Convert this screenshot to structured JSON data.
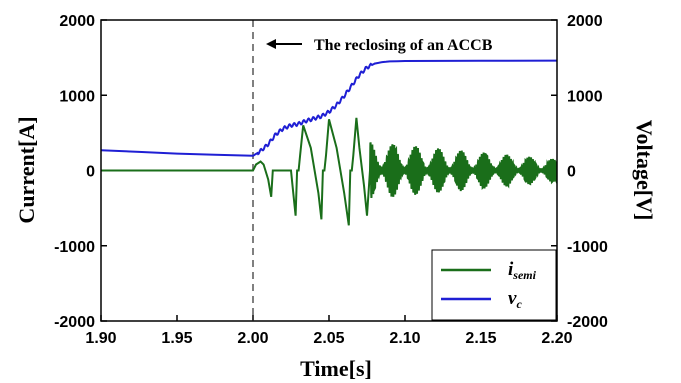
{
  "chart_data": {
    "type": "line",
    "xlabel": "Time[s]",
    "ylabel_left": "Current[A]",
    "ylabel_right": "Voltage[V]",
    "xlim": [
      1.9,
      2.2
    ],
    "ylim_left": [
      -2000,
      2000
    ],
    "ylim_right": [
      -2000,
      2000
    ],
    "x_ticks": [
      "1.90",
      "1.95",
      "2.00",
      "2.05",
      "2.10",
      "2.15",
      "2.20"
    ],
    "y_ticks_left": [
      "2000",
      "1000",
      "0",
      "-1000",
      "-2000"
    ],
    "y_ticks_right": [
      "2000",
      "1000",
      "0",
      "-1000",
      "-2000"
    ],
    "grid": false,
    "legend_position": "bottom-right",
    "annotation": {
      "text": "The reclosing of an ACCB",
      "x": 2.0
    },
    "series": [
      {
        "name_main": "i",
        "name_sub": "semi",
        "color": "#1a6e1a",
        "axis": "left",
        "points": [
          [
            1.9,
            0
          ],
          [
            2.0,
            0
          ],
          [
            2.002,
            80
          ],
          [
            2.005,
            120
          ],
          [
            2.007,
            80
          ],
          [
            2.01,
            -120
          ],
          [
            2.012,
            -350
          ],
          [
            2.013,
            0
          ],
          [
            2.025,
            0
          ],
          [
            2.026,
            -200
          ],
          [
            2.028,
            -600
          ],
          [
            2.029,
            0
          ],
          [
            2.03,
            0
          ],
          [
            2.031,
            200
          ],
          [
            2.033,
            600
          ],
          [
            2.038,
            300
          ],
          [
            2.043,
            -300
          ],
          [
            2.045,
            -650
          ],
          [
            2.046,
            0
          ],
          [
            2.047,
            0
          ],
          [
            2.048,
            200
          ],
          [
            2.05,
            680
          ],
          [
            2.055,
            300
          ],
          [
            2.06,
            -300
          ],
          [
            2.063,
            -730
          ],
          [
            2.064,
            0
          ],
          [
            2.065,
            0
          ],
          [
            2.066,
            200
          ],
          [
            2.068,
            700
          ],
          [
            2.07,
            300
          ],
          [
            2.073,
            -200
          ],
          [
            2.075,
            -600
          ],
          [
            2.077,
            0
          ]
        ],
        "oscillation": {
          "x_start": 2.077,
          "x_end": 2.2,
          "amp_start": 380,
          "amp_end": 150,
          "period": 0.015,
          "fast_period": 0.0012
        }
      },
      {
        "name_main": "v",
        "name_sub": "c",
        "color": "#1f1fd4",
        "axis": "right",
        "points": [
          [
            1.9,
            270
          ],
          [
            1.95,
            225
          ],
          [
            2.0,
            195
          ],
          [
            2.005,
            260
          ],
          [
            2.01,
            350
          ],
          [
            2.015,
            480
          ],
          [
            2.02,
            560
          ],
          [
            2.025,
            600
          ],
          [
            2.03,
            620
          ],
          [
            2.035,
            660
          ],
          [
            2.04,
            690
          ],
          [
            2.045,
            720
          ],
          [
            2.05,
            780
          ],
          [
            2.055,
            870
          ],
          [
            2.06,
            990
          ],
          [
            2.065,
            1130
          ],
          [
            2.07,
            1270
          ],
          [
            2.075,
            1370
          ],
          [
            2.08,
            1420
          ],
          [
            2.085,
            1440
          ],
          [
            2.09,
            1450
          ],
          [
            2.1,
            1455
          ],
          [
            2.2,
            1460
          ]
        ]
      }
    ]
  }
}
